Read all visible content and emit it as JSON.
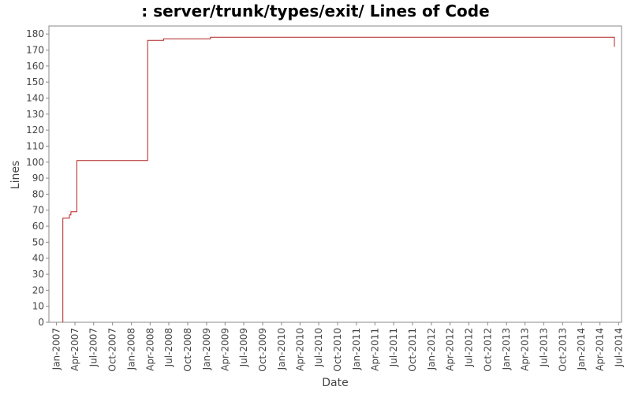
{
  "chart_data": {
    "type": "line",
    "title": ": server/trunk/types/exit/ Lines of Code",
    "xlabel": "Date",
    "ylabel": "Lines",
    "ylim": [
      0,
      185
    ],
    "yticks": [
      0,
      10,
      20,
      30,
      40,
      50,
      60,
      70,
      80,
      90,
      100,
      110,
      120,
      130,
      140,
      150,
      160,
      170,
      180
    ],
    "xlim": [
      "2006-11-25",
      "2014-07-15"
    ],
    "xticks": [
      "Jan-2007",
      "Apr-2007",
      "Jul-2007",
      "Oct-2007",
      "Jan-2008",
      "Apr-2008",
      "Jul-2008",
      "Oct-2008",
      "Jan-2009",
      "Apr-2009",
      "Jul-2009",
      "Oct-2009",
      "Jan-2010",
      "Apr-2010",
      "Jul-2010",
      "Oct-2010",
      "Jan-2011",
      "Apr-2011",
      "Jul-2011",
      "Oct-2011",
      "Jan-2012",
      "Apr-2012",
      "Jul-2012",
      "Oct-2012",
      "Jan-2013",
      "Apr-2013",
      "Jul-2013",
      "Oct-2013",
      "Jan-2014",
      "Apr-2014",
      "Jul-2014"
    ],
    "grid": false,
    "step": true,
    "series_color": "#b22222",
    "series": [
      {
        "points": [
          {
            "x": "2007-02-01",
            "y": 0
          },
          {
            "x": "2007-02-01",
            "y": 65
          },
          {
            "x": "2007-03-05",
            "y": 67
          },
          {
            "x": "2007-03-12",
            "y": 69
          },
          {
            "x": "2007-04-10",
            "y": 101
          },
          {
            "x": "2008-03-20",
            "y": 176
          },
          {
            "x": "2008-06-05",
            "y": 177
          },
          {
            "x": "2009-01-20",
            "y": 178
          },
          {
            "x": "2014-06-10",
            "y": 178
          },
          {
            "x": "2014-06-10",
            "y": 172
          }
        ]
      }
    ]
  }
}
